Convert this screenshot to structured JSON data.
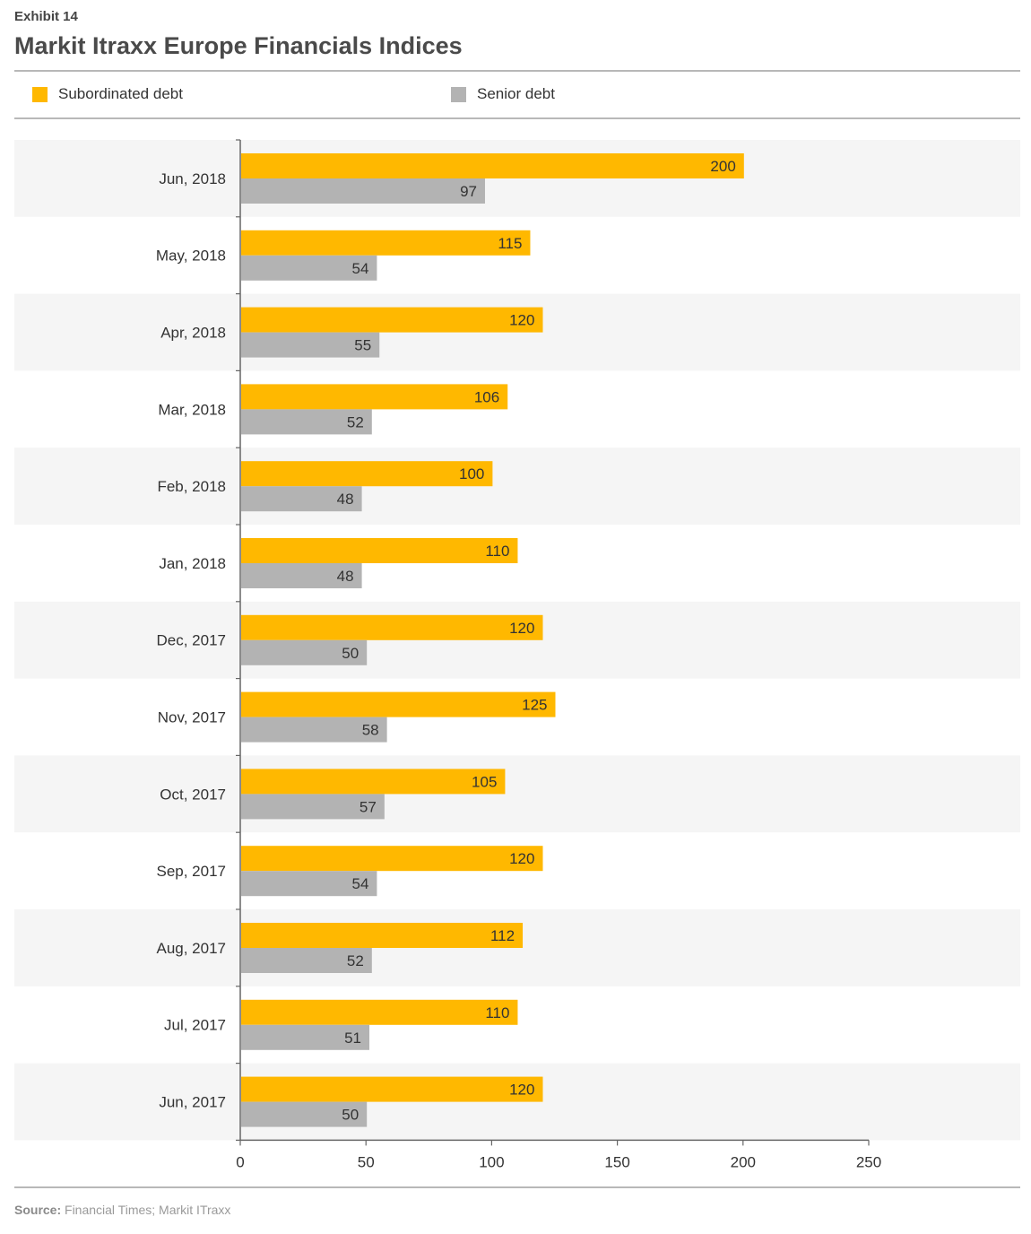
{
  "header": {
    "exhibit": "Exhibit 14",
    "title": "Markit Itraxx Europe Financials Indices"
  },
  "legend": [
    {
      "name": "Subordinated debt",
      "color": "#ffb800"
    },
    {
      "name": "Senior debt",
      "color": "#b3b3b3"
    }
  ],
  "footer": {
    "source_label": "Source:",
    "source_text": "Financial Times; Markit ITraxx"
  },
  "chart_data": {
    "type": "bar",
    "orientation": "horizontal",
    "categories": [
      "Jun, 2018",
      "May, 2018",
      "Apr, 2018",
      "Mar, 2018",
      "Feb, 2018",
      "Jan, 2018",
      "Dec, 2017",
      "Nov, 2017",
      "Oct, 2017",
      "Sep, 2017",
      "Aug, 2017",
      "Jul, 2017",
      "Jun, 2017"
    ],
    "series": [
      {
        "name": "Subordinated debt",
        "color": "#ffb800",
        "values": [
          200,
          115,
          120,
          106,
          100,
          110,
          120,
          125,
          105,
          120,
          112,
          110,
          120
        ]
      },
      {
        "name": "Senior debt",
        "color": "#b3b3b3",
        "values": [
          97,
          54,
          55,
          52,
          48,
          48,
          50,
          58,
          57,
          54,
          52,
          51,
          50
        ]
      }
    ],
    "xticks": [
      0,
      50,
      100,
      150,
      200,
      250
    ],
    "xlim": [
      0,
      250
    ],
    "legend_position": "top",
    "data_labels": true,
    "grid": false
  }
}
